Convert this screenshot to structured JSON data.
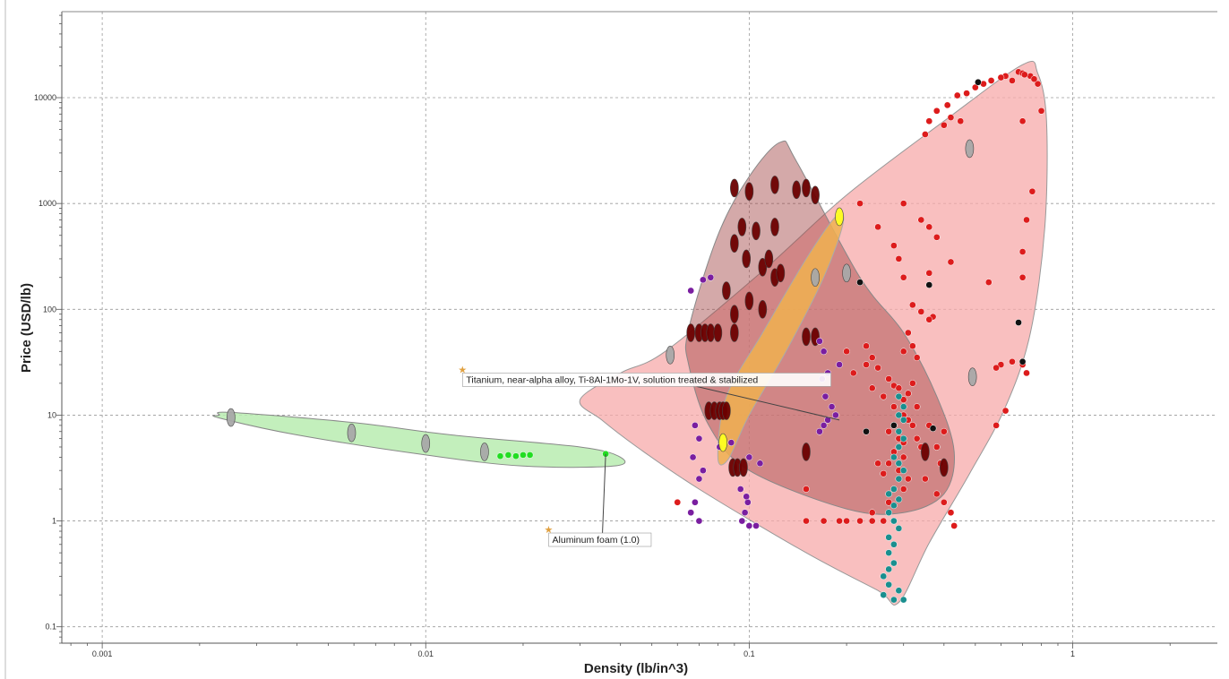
{
  "chart_data": {
    "type": "scatter",
    "title": "",
    "xlabel": "Density (lb/in^3)",
    "ylabel": "Price (USD/lb)",
    "x_scale": "log",
    "y_scale": "log",
    "xlim": [
      0.00075,
      2.8
    ],
    "ylim": [
      0.07,
      65000
    ],
    "x_ticks": [
      {
        "value": 0.001,
        "label": "0.001"
      },
      {
        "value": 0.01,
        "label": "0.01"
      },
      {
        "value": 0.1,
        "label": "0.1"
      },
      {
        "value": 1,
        "label": "1"
      }
    ],
    "y_ticks": [
      {
        "value": 0.1,
        "label": "0.1"
      },
      {
        "value": 1,
        "label": "1"
      },
      {
        "value": 10,
        "label": "10"
      },
      {
        "value": 100,
        "label": "100"
      },
      {
        "value": 1000,
        "label": "1000"
      },
      {
        "value": 10000,
        "label": "10000"
      }
    ],
    "grid": true,
    "regions": [
      {
        "color": "#f7a9a9",
        "stroke": "#999999",
        "opacity": 0.75,
        "hull": [
          [
            0.055,
            40
          ],
          [
            0.11,
            230
          ],
          [
            0.2,
            1200
          ],
          [
            0.4,
            6000
          ],
          [
            0.7,
            20500
          ],
          [
            0.78,
            17000
          ],
          [
            0.83,
            6000
          ],
          [
            0.82,
            600
          ],
          [
            0.74,
            60
          ],
          [
            0.62,
            12
          ],
          [
            0.48,
            2.8
          ],
          [
            0.36,
            0.62
          ],
          [
            0.29,
            0.17
          ],
          [
            0.25,
            0.22
          ],
          [
            0.15,
            0.5
          ],
          [
            0.07,
            2
          ],
          [
            0.045,
            5
          ],
          [
            0.035,
            9
          ],
          [
            0.03,
            14
          ],
          [
            0.04,
            25
          ]
        ]
      },
      {
        "color": "#a04040",
        "stroke": "#888888",
        "opacity": 0.45,
        "hull": [
          [
            0.065,
            65
          ],
          [
            0.08,
            500
          ],
          [
            0.1,
            1800
          ],
          [
            0.125,
            3800
          ],
          [
            0.14,
            2500
          ],
          [
            0.22,
            200
          ],
          [
            0.3,
            60
          ],
          [
            0.38,
            15
          ],
          [
            0.43,
            4.5
          ],
          [
            0.4,
            1.8
          ],
          [
            0.3,
            1.2
          ],
          [
            0.2,
            1.3
          ],
          [
            0.1,
            3
          ],
          [
            0.075,
            8
          ],
          [
            0.065,
            30
          ]
        ]
      },
      {
        "color": "#f0b050",
        "stroke": "#aaaaaa",
        "opacity": 0.85,
        "hull": [
          [
            0.08,
            4
          ],
          [
            0.085,
            15
          ],
          [
            0.11,
            60
          ],
          [
            0.15,
            300
          ],
          [
            0.185,
            750
          ],
          [
            0.195,
            650
          ],
          [
            0.17,
            200
          ],
          [
            0.13,
            40
          ],
          [
            0.1,
            10
          ],
          [
            0.086,
            3.8
          ]
        ]
      },
      {
        "color": "#b8ecb0",
        "stroke": "#888888",
        "opacity": 0.85,
        "hull": [
          [
            0.0023,
            10
          ],
          [
            0.0025,
            10.6
          ],
          [
            0.006,
            8.5
          ],
          [
            0.012,
            6.5
          ],
          [
            0.03,
            5
          ],
          [
            0.04,
            4
          ],
          [
            0.038,
            3.3
          ],
          [
            0.02,
            3.3
          ],
          [
            0.01,
            4.2
          ],
          [
            0.004,
            6.5
          ],
          [
            0.0023,
            9.4
          ]
        ]
      }
    ],
    "series": [
      {
        "color": "#dd1c1c",
        "shape": "dot",
        "points": [
          [
            0.44,
            10500
          ],
          [
            0.5,
            12500
          ],
          [
            0.56,
            14500
          ],
          [
            0.62,
            16000
          ],
          [
            0.68,
            17500
          ],
          [
            0.74,
            16000
          ],
          [
            0.78,
            13500
          ],
          [
            0.8,
            7500
          ],
          [
            0.38,
            7500
          ],
          [
            0.41,
            8500
          ],
          [
            0.47,
            11000
          ],
          [
            0.53,
            13500
          ],
          [
            0.6,
            15500
          ],
          [
            0.7,
            17000
          ],
          [
            0.76,
            15000
          ],
          [
            0.65,
            14500
          ],
          [
            0.71,
            16500
          ],
          [
            0.35,
            4500
          ],
          [
            0.4,
            5500
          ],
          [
            0.36,
            6000
          ],
          [
            0.42,
            6500
          ],
          [
            0.45,
            6000
          ],
          [
            0.7,
            6000
          ],
          [
            0.3,
            1000
          ],
          [
            0.34,
            700
          ],
          [
            0.38,
            480
          ],
          [
            0.36,
            600
          ],
          [
            0.75,
            1300
          ],
          [
            0.72,
            700
          ],
          [
            0.7,
            350
          ],
          [
            0.22,
            1000
          ],
          [
            0.25,
            600
          ],
          [
            0.28,
            400
          ],
          [
            0.29,
            300
          ],
          [
            0.42,
            280
          ],
          [
            0.55,
            180
          ],
          [
            0.7,
            200
          ],
          [
            0.32,
            110
          ],
          [
            0.34,
            95
          ],
          [
            0.37,
            85
          ],
          [
            0.3,
            200
          ],
          [
            0.36,
            220
          ],
          [
            0.31,
            60
          ],
          [
            0.36,
            80
          ],
          [
            0.21,
            25
          ],
          [
            0.23,
            30
          ],
          [
            0.25,
            28
          ],
          [
            0.27,
            22
          ],
          [
            0.24,
            18
          ],
          [
            0.26,
            15
          ],
          [
            0.28,
            19
          ],
          [
            0.23,
            45
          ],
          [
            0.24,
            35
          ],
          [
            0.3,
            14
          ],
          [
            0.28,
            12
          ],
          [
            0.3,
            10
          ],
          [
            0.31,
            9
          ],
          [
            0.32,
            8
          ],
          [
            0.28,
            8
          ],
          [
            0.27,
            7
          ],
          [
            0.29,
            6
          ],
          [
            0.3,
            5.5
          ],
          [
            0.28,
            4.5
          ],
          [
            0.3,
            4
          ],
          [
            0.27,
            3.5
          ],
          [
            0.29,
            3
          ],
          [
            0.31,
            2.5
          ],
          [
            0.3,
            2
          ],
          [
            0.27,
            1.5
          ],
          [
            0.24,
            1.2
          ],
          [
            0.4,
            1.5
          ],
          [
            0.42,
            1.2
          ],
          [
            0.38,
            1.8
          ],
          [
            0.35,
            2.5
          ],
          [
            0.43,
            0.9
          ],
          [
            0.2,
            1
          ],
          [
            0.22,
            1
          ],
          [
            0.17,
            1
          ],
          [
            0.19,
            1
          ],
          [
            0.24,
            1
          ],
          [
            0.26,
            1
          ],
          [
            0.15,
            1
          ],
          [
            0.6,
            30
          ],
          [
            0.65,
            32
          ],
          [
            0.7,
            30
          ],
          [
            0.72,
            25
          ],
          [
            0.58,
            28
          ],
          [
            0.33,
            6
          ],
          [
            0.36,
            8
          ],
          [
            0.38,
            5
          ],
          [
            0.39,
            3.5
          ],
          [
            0.4,
            7
          ],
          [
            0.34,
            5
          ],
          [
            0.62,
            11
          ],
          [
            0.58,
            8
          ],
          [
            0.26,
            2.8
          ],
          [
            0.25,
            3.5
          ],
          [
            0.06,
            1.5
          ],
          [
            0.15,
            2
          ],
          [
            0.32,
            45
          ],
          [
            0.3,
            40
          ],
          [
            0.33,
            35
          ],
          [
            0.2,
            40
          ],
          [
            0.31,
            16
          ],
          [
            0.29,
            18
          ],
          [
            0.33,
            12
          ],
          [
            0.32,
            20
          ]
        ]
      },
      {
        "color": "#6b0000",
        "shape": "oval",
        "points": [
          [
            0.09,
            1400
          ],
          [
            0.1,
            1300
          ],
          [
            0.12,
            1500
          ],
          [
            0.15,
            1400
          ],
          [
            0.16,
            1200
          ],
          [
            0.14,
            1350
          ],
          [
            0.095,
            600
          ],
          [
            0.105,
            550
          ],
          [
            0.12,
            600
          ],
          [
            0.09,
            420
          ],
          [
            0.098,
            300
          ],
          [
            0.11,
            250
          ],
          [
            0.115,
            300
          ],
          [
            0.12,
            200
          ],
          [
            0.125,
            220
          ],
          [
            0.085,
            150
          ],
          [
            0.1,
            120
          ],
          [
            0.11,
            100
          ],
          [
            0.09,
            90
          ],
          [
            0.066,
            60
          ],
          [
            0.07,
            60
          ],
          [
            0.073,
            60
          ],
          [
            0.076,
            60
          ],
          [
            0.08,
            60
          ],
          [
            0.09,
            60
          ],
          [
            0.15,
            55
          ],
          [
            0.16,
            55
          ],
          [
            0.075,
            11
          ],
          [
            0.078,
            11
          ],
          [
            0.081,
            11
          ],
          [
            0.083,
            11
          ],
          [
            0.085,
            11
          ],
          [
            0.089,
            3.2
          ],
          [
            0.092,
            3.2
          ],
          [
            0.096,
            3.2
          ],
          [
            0.15,
            4.5
          ],
          [
            0.35,
            4.5
          ],
          [
            0.4,
            3.2
          ]
        ]
      },
      {
        "color": "#7a1ea0",
        "shape": "dot",
        "points": [
          [
            0.066,
            150
          ],
          [
            0.072,
            190
          ],
          [
            0.076,
            200
          ],
          [
            0.068,
            8
          ],
          [
            0.07,
            6
          ],
          [
            0.067,
            4
          ],
          [
            0.072,
            3
          ],
          [
            0.07,
            2.5
          ],
          [
            0.068,
            1.5
          ],
          [
            0.066,
            1.2
          ],
          [
            0.07,
            1
          ],
          [
            0.081,
            5
          ],
          [
            0.088,
            5.5
          ],
          [
            0.1,
            4
          ],
          [
            0.097,
            1.2
          ],
          [
            0.099,
            1.5
          ],
          [
            0.095,
            1
          ],
          [
            0.1,
            0.9
          ],
          [
            0.094,
            2
          ],
          [
            0.098,
            1.7
          ],
          [
            0.108,
            3.5
          ],
          [
            0.105,
            0.9
          ],
          [
            0.165,
            50
          ],
          [
            0.17,
            40
          ],
          [
            0.175,
            25
          ],
          [
            0.168,
            22
          ],
          [
            0.172,
            15
          ],
          [
            0.18,
            12
          ],
          [
            0.185,
            10
          ],
          [
            0.175,
            9
          ],
          [
            0.17,
            8
          ],
          [
            0.165,
            7
          ],
          [
            0.19,
            30
          ]
        ]
      },
      {
        "color": "#1a8f8f",
        "shape": "dot",
        "points": [
          [
            0.29,
            15
          ],
          [
            0.3,
            12
          ],
          [
            0.29,
            10
          ],
          [
            0.3,
            9
          ],
          [
            0.28,
            8
          ],
          [
            0.29,
            7
          ],
          [
            0.3,
            6
          ],
          [
            0.29,
            5
          ],
          [
            0.28,
            4
          ],
          [
            0.29,
            3.5
          ],
          [
            0.3,
            3
          ],
          [
            0.29,
            2.5
          ],
          [
            0.28,
            2
          ],
          [
            0.27,
            1.8
          ],
          [
            0.29,
            1.6
          ],
          [
            0.28,
            1.4
          ],
          [
            0.27,
            1.2
          ],
          [
            0.28,
            1
          ],
          [
            0.29,
            0.85
          ],
          [
            0.27,
            0.7
          ],
          [
            0.28,
            0.6
          ],
          [
            0.27,
            0.5
          ],
          [
            0.28,
            0.4
          ],
          [
            0.27,
            0.35
          ],
          [
            0.26,
            0.3
          ],
          [
            0.27,
            0.25
          ],
          [
            0.26,
            0.2
          ],
          [
            0.28,
            0.18
          ],
          [
            0.3,
            0.18
          ],
          [
            0.29,
            0.22
          ]
        ]
      },
      {
        "color": "#22dd22",
        "shape": "dot",
        "points": [
          [
            0.017,
            4.1
          ],
          [
            0.018,
            4.2
          ],
          [
            0.019,
            4.1
          ],
          [
            0.02,
            4.2
          ],
          [
            0.021,
            4.2
          ],
          [
            0.036,
            4.3
          ]
        ]
      },
      {
        "color": "#ffff20",
        "shape": "oval",
        "points": [
          [
            0.083,
            5.5
          ],
          [
            0.19,
            750
          ]
        ]
      },
      {
        "color": "#a8a8a8",
        "shape": "oval",
        "points": [
          [
            0.0025,
            9.5
          ],
          [
            0.0059,
            6.8
          ],
          [
            0.01,
            5.4
          ],
          [
            0.0152,
            4.5
          ],
          [
            0.057,
            37
          ],
          [
            0.16,
            200
          ],
          [
            0.2,
            220
          ],
          [
            0.48,
            3300
          ],
          [
            0.49,
            23
          ]
        ]
      },
      {
        "color": "#111111",
        "shape": "dot",
        "points": [
          [
            0.22,
            180
          ],
          [
            0.36,
            170
          ],
          [
            0.51,
            14000
          ],
          [
            0.68,
            75
          ],
          [
            0.7,
            32
          ],
          [
            0.23,
            7
          ],
          [
            0.37,
            7.5
          ],
          [
            0.28,
            8
          ]
        ]
      }
    ],
    "annotations": [
      {
        "text": "Titanium, near-alpha alloy, Ti-8Al-1Mo-1V, solution treated & stabilized",
        "star": [
          0.013,
          26
        ],
        "leader_end": [
          0.19,
          9
        ]
      },
      {
        "text": "Aluminum foam (1.0)",
        "star": [
          0.024,
          0.8
        ],
        "leader_end": [
          0.036,
          4.3
        ]
      }
    ]
  }
}
